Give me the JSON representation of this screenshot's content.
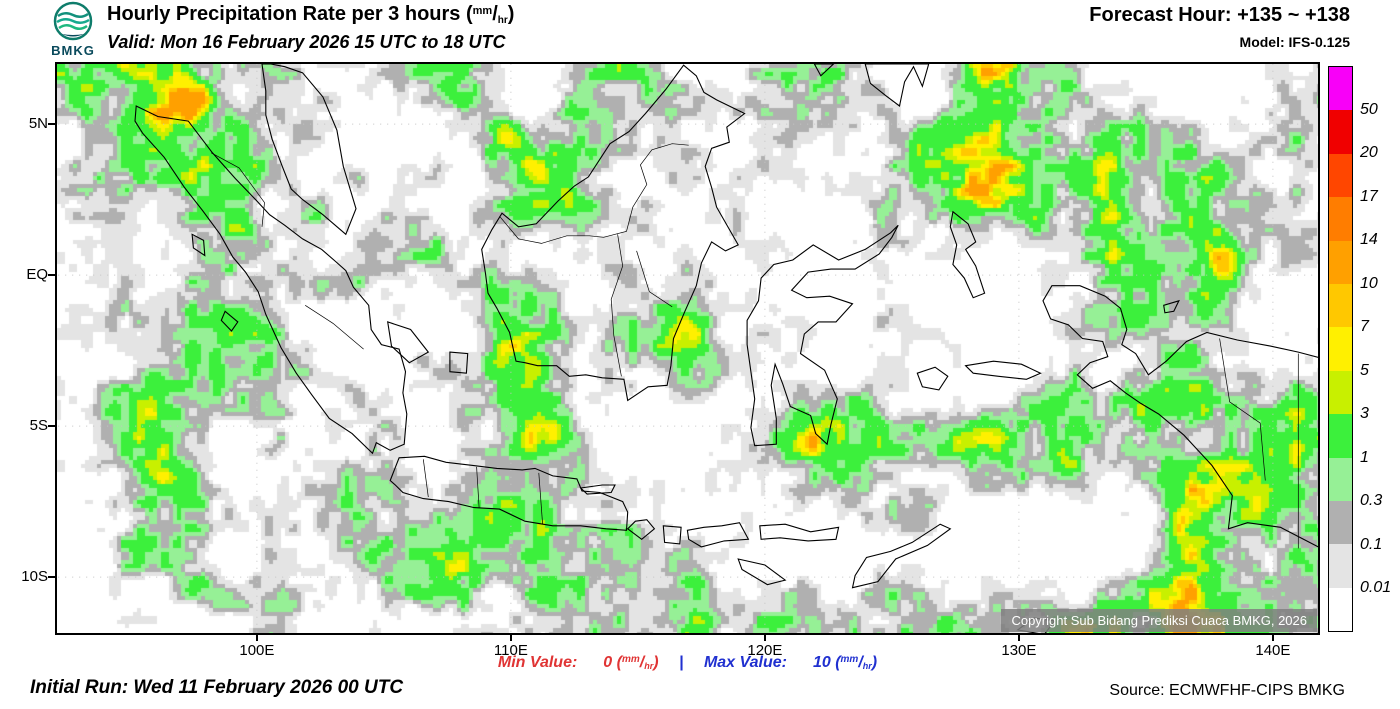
{
  "header": {
    "logo_text": "BMKG",
    "title_main": "Hourly Precipitation Rate per 3 hours",
    "valid_line": "Valid: Mon 16 February 2026 15 UTC to 18 UTC",
    "forecast_hour": "Forecast Hour: +135 ~ +138",
    "model": "Model: IFS-0.125"
  },
  "unit": {
    "open": "(",
    "num": "mm",
    "slash": "/",
    "den": "hr",
    "close": ")"
  },
  "axes": {
    "lat": [
      {
        "label": "5N",
        "value": 5
      },
      {
        "label": "EQ",
        "value": 0
      },
      {
        "label": "5S",
        "value": -5
      },
      {
        "label": "10S",
        "value": -10
      }
    ],
    "lon": [
      {
        "label": "100E",
        "value": 100
      },
      {
        "label": "110E",
        "value": 110
      },
      {
        "label": "120E",
        "value": 120
      },
      {
        "label": "130E",
        "value": 130
      },
      {
        "label": "140E",
        "value": 140
      }
    ]
  },
  "legend": {
    "labels": [
      "50",
      "20",
      "17",
      "14",
      "10",
      "7",
      "5",
      "3",
      "1",
      "0.3",
      "0.1",
      "0.01"
    ],
    "colors": [
      "#f800f8",
      "#f00000",
      "#ff4600",
      "#ff7d00",
      "#ffa000",
      "#ffc800",
      "#fff000",
      "#c8f000",
      "#3cf03c",
      "#96f096",
      "#b0b0b0",
      "#e4e4e4",
      "#ffffff"
    ]
  },
  "map": {
    "copyright": "Copyright Sub Bidang Prediksi Cuaca BMKG, 2026"
  },
  "footer": {
    "min_label": "Min Value:",
    "min_value": "0",
    "separator": "|",
    "max_label": "Max Value:",
    "max_value": "10",
    "initial_run": "Initial Run: Wed 11 February 2026 00 UTC",
    "source": "Source: ECMWFHF-CIPS BMKG"
  }
}
